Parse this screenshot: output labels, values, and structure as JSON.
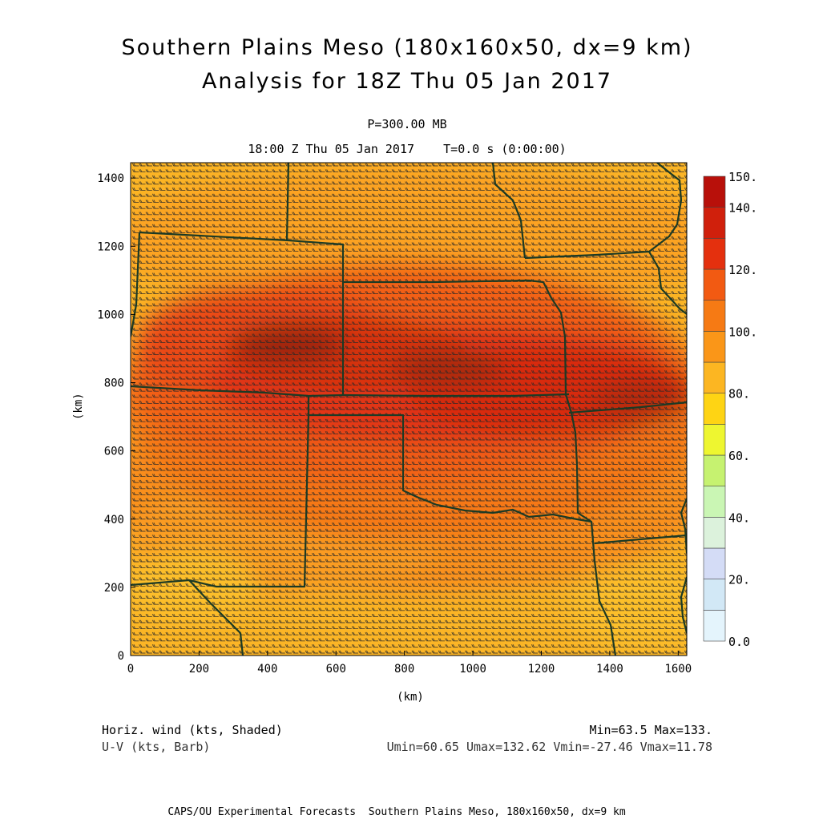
{
  "header": {
    "title_line1": "Southern Plains Meso (180x160x50, dx=9 km)",
    "title_line2": "Analysis for 18Z Thu 05 Jan 2017",
    "level": "P=300.00 MB",
    "valid_time": "18:00 Z Thu 05 Jan 2017    T=0.0 s (0:00:00)"
  },
  "axes": {
    "x_label": "(km)",
    "y_label": "(km)",
    "x_ticks": [
      "0",
      "200",
      "400",
      "600",
      "800",
      "1000",
      "1200",
      "1400",
      "1600"
    ],
    "y_ticks": [
      "0",
      "200",
      "400",
      "600",
      "800",
      "1000",
      "1200",
      "1400"
    ],
    "x_values": [
      0,
      200,
      400,
      600,
      800,
      1000,
      1200,
      1400,
      1600
    ],
    "y_values": [
      0,
      200,
      400,
      600,
      800,
      1000,
      1200,
      1400
    ],
    "x_range": [
      0,
      1625
    ],
    "y_range": [
      0,
      1445
    ]
  },
  "colorbar": {
    "labels": [
      "150.",
      "140.",
      "120.",
      "100.",
      "80.",
      "60.",
      "40.",
      "20.",
      "0.0"
    ],
    "label_values": [
      150,
      140,
      120,
      100,
      80,
      60,
      40,
      20,
      0
    ],
    "levels": [
      0,
      10,
      20,
      30,
      40,
      50,
      60,
      70,
      80,
      90,
      100,
      110,
      120,
      130,
      140,
      150
    ],
    "colors": [
      "#e4f4fc",
      "#d2e8f6",
      "#d4dcf6",
      "#dcf2dc",
      "#caf6b4",
      "#c6f270",
      "#eef630",
      "#fed414",
      "#fcb622",
      "#fa9618",
      "#f67a14",
      "#f25a12",
      "#e4300e",
      "#d0200c",
      "#b8100a"
    ]
  },
  "field": {
    "name": "Horiz. wind (kts, Shaded)",
    "barb_name": "U-V (kts, Barb)",
    "minmax": "Min=63.5 Max=133.",
    "uv_stats": "Umin=60.65 Umax=132.62 Vmin=-27.46 Vmax=11.78"
  },
  "footer": "CAPS/OU Experimental Forecasts  Southern Plains Meso, 180x160x50, dx=9 km",
  "map": {
    "border_color": "#1c3a24",
    "barb_color": "#2a2a2a",
    "jet_core_color": "#8e1e10"
  }
}
